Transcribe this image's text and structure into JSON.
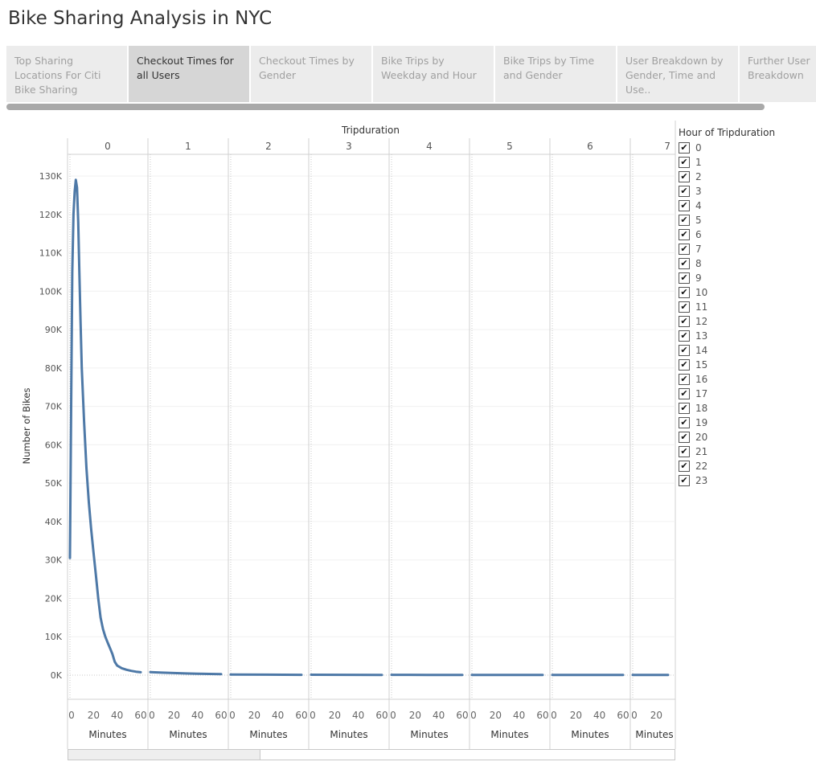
{
  "title": "Bike Sharing Analysis in NYC",
  "tabs": [
    {
      "label": "Top Sharing Locations For Citi Bike Sharing",
      "active": false
    },
    {
      "label": "Checkout Times for all Users",
      "active": true
    },
    {
      "label": "Checkout Times by Gender",
      "active": false
    },
    {
      "label": "Bike Trips by Weekday and Hour",
      "active": false
    },
    {
      "label": "Bike Trips by Time and Gender",
      "active": false
    },
    {
      "label": "User Breakdown by Gender, Time and Use..",
      "active": false
    },
    {
      "label": "Further User Breakdown",
      "active": false
    }
  ],
  "legend": {
    "title": "Hour of Tripduration",
    "items": [
      "0",
      "1",
      "2",
      "3",
      "4",
      "5",
      "6",
      "7",
      "8",
      "9",
      "10",
      "11",
      "12",
      "13",
      "14",
      "15",
      "16",
      "17",
      "18",
      "19",
      "20",
      "21",
      "22",
      "23"
    ]
  },
  "colors": {
    "line": "#4e79a7",
    "active_tab": "#d6d6d6",
    "tab": "#ececec"
  },
  "chart_data": {
    "type": "line",
    "title": "Tripduration",
    "ylabel": "Number of Bikes",
    "xlabel": "Minutes",
    "ylim": [
      0,
      130000
    ],
    "yticks": [
      "0K",
      "10K",
      "20K",
      "30K",
      "40K",
      "50K",
      "60K",
      "70K",
      "80K",
      "90K",
      "100K",
      "110K",
      "120K",
      "130K"
    ],
    "xticks": [
      "0",
      "20",
      "40",
      "60"
    ],
    "xlim": [
      0,
      60
    ],
    "panels": [
      {
        "hour": "0",
        "series": [
          [
            0,
            30500
          ],
          [
            1,
            70000
          ],
          [
            2,
            105000
          ],
          [
            3,
            120000
          ],
          [
            4,
            126000
          ],
          [
            5,
            129000
          ],
          [
            6,
            127000
          ],
          [
            7,
            118000
          ],
          [
            8,
            105000
          ],
          [
            9,
            92000
          ],
          [
            10,
            80000
          ],
          [
            12,
            66000
          ],
          [
            14,
            54000
          ],
          [
            16,
            45000
          ],
          [
            18,
            38000
          ],
          [
            20,
            32000
          ],
          [
            22,
            26000
          ],
          [
            24,
            20000
          ],
          [
            26,
            15000
          ],
          [
            28,
            12000
          ],
          [
            30,
            10000
          ],
          [
            32,
            8500
          ],
          [
            34,
            7000
          ],
          [
            36,
            5500
          ],
          [
            38,
            3500
          ],
          [
            40,
            2500
          ],
          [
            44,
            1800
          ],
          [
            48,
            1400
          ],
          [
            52,
            1100
          ],
          [
            56,
            900
          ],
          [
            60,
            750
          ]
        ]
      },
      {
        "hour": "1",
        "series": [
          [
            0,
            800
          ],
          [
            10,
            650
          ],
          [
            20,
            550
          ],
          [
            30,
            450
          ],
          [
            40,
            380
          ],
          [
            50,
            320
          ],
          [
            60,
            280
          ]
        ]
      },
      {
        "hour": "2",
        "series": [
          [
            0,
            150
          ],
          [
            30,
            120
          ],
          [
            60,
            90
          ]
        ]
      },
      {
        "hour": "3",
        "series": [
          [
            0,
            100
          ],
          [
            30,
            80
          ],
          [
            60,
            70
          ]
        ]
      },
      {
        "hour": "4",
        "series": [
          [
            0,
            80
          ],
          [
            30,
            70
          ],
          [
            60,
            60
          ]
        ]
      },
      {
        "hour": "5",
        "series": [
          [
            0,
            70
          ],
          [
            30,
            60
          ],
          [
            60,
            55
          ]
        ]
      },
      {
        "hour": "6",
        "series": [
          [
            0,
            60
          ],
          [
            30,
            55
          ],
          [
            60,
            50
          ]
        ]
      },
      {
        "hour": "7",
        "series": [
          [
            0,
            55
          ],
          [
            30,
            50
          ],
          [
            60,
            45
          ]
        ]
      }
    ]
  }
}
